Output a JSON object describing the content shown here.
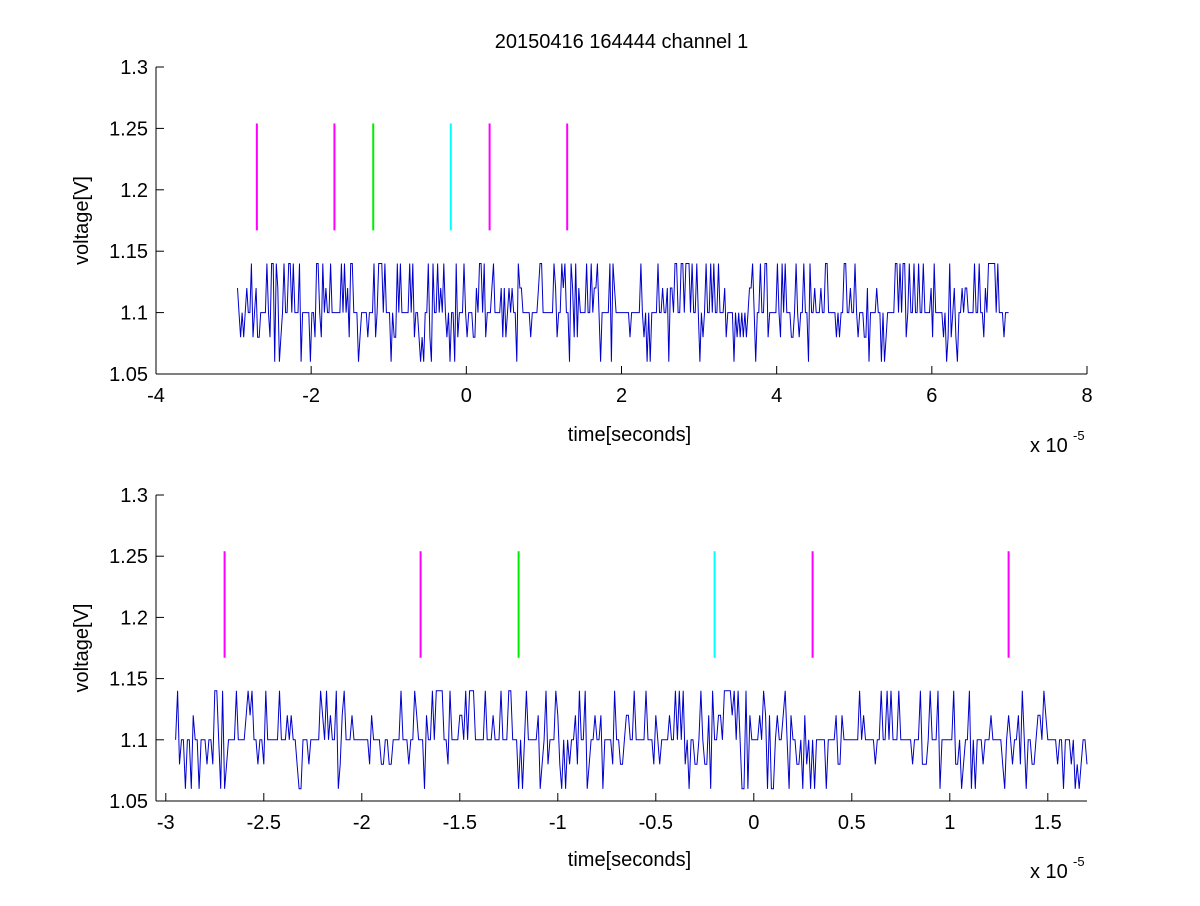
{
  "chart_data": [
    {
      "type": "line",
      "title": "20150416 164444 channel 1",
      "xlabel": "time[seconds]",
      "ylabel": "voltage[V]",
      "x_exponent_label": "x 10",
      "x_exponent_power": "-5",
      "xlim": [
        -4,
        8
      ],
      "ylim": [
        1.05,
        1.3
      ],
      "xticks": [
        "-4",
        "-2",
        "0",
        "2",
        "4",
        "6",
        "8"
      ],
      "xtick_values": [
        -4,
        -2,
        0,
        2,
        4,
        6,
        8
      ],
      "yticks": [
        "1.05",
        "1.1",
        "1.15",
        "1.2",
        "1.25",
        "1.3"
      ],
      "ytick_values": [
        1.05,
        1.1,
        1.15,
        1.2,
        1.25,
        1.3
      ],
      "grid": false,
      "signal": {
        "color": "#0000cc",
        "x_start": -2.95,
        "x_end": 7.0,
        "dt": 0.02,
        "levels": [
          1.06,
          1.08,
          1.1,
          1.12,
          1.14
        ],
        "baseline": 1.1
      },
      "markers": [
        {
          "x": -2.7,
          "y_from": 1.167,
          "y_to": 1.254,
          "color": "#ff00ff"
        },
        {
          "x": -1.7,
          "y_from": 1.167,
          "y_to": 1.254,
          "color": "#ff00ff"
        },
        {
          "x": -1.2,
          "y_from": 1.167,
          "y_to": 1.254,
          "color": "#00ee00"
        },
        {
          "x": -0.2,
          "y_from": 1.167,
          "y_to": 1.254,
          "color": "#00ffff"
        },
        {
          "x": 0.3,
          "y_from": 1.167,
          "y_to": 1.254,
          "color": "#ff00ff"
        },
        {
          "x": 1.3,
          "y_from": 1.167,
          "y_to": 1.254,
          "color": "#ff00ff"
        }
      ]
    },
    {
      "type": "line",
      "title": "",
      "xlabel": "time[seconds]",
      "ylabel": "voltage[V]",
      "x_exponent_label": "x 10",
      "x_exponent_power": "-5",
      "xlim": [
        -3.05,
        1.7
      ],
      "ylim": [
        1.05,
        1.3
      ],
      "xticks": [
        "-3",
        "-2.5",
        "-2",
        "-1.5",
        "-1",
        "-0.5",
        "0",
        "0.5",
        "1",
        "1.5"
      ],
      "xtick_values": [
        -3,
        -2.5,
        -2,
        -1.5,
        -1,
        -0.5,
        0,
        0.5,
        1,
        1.5
      ],
      "yticks": [
        "1.05",
        "1.1",
        "1.15",
        "1.2",
        "1.25",
        "1.3"
      ],
      "ytick_values": [
        1.05,
        1.1,
        1.15,
        1.2,
        1.25,
        1.3
      ],
      "grid": false,
      "signal": {
        "color": "#0000cc",
        "x_start": -2.95,
        "x_end": 1.7,
        "dt": 0.01,
        "levels": [
          1.06,
          1.08,
          1.1,
          1.12,
          1.14
        ],
        "baseline": 1.1
      },
      "markers": [
        {
          "x": -2.7,
          "y_from": 1.167,
          "y_to": 1.254,
          "color": "#ff00ff"
        },
        {
          "x": -1.7,
          "y_from": 1.167,
          "y_to": 1.254,
          "color": "#ff00ff"
        },
        {
          "x": -1.2,
          "y_from": 1.167,
          "y_to": 1.254,
          "color": "#00ee00"
        },
        {
          "x": -0.2,
          "y_from": 1.167,
          "y_to": 1.254,
          "color": "#00ffff"
        },
        {
          "x": 0.3,
          "y_from": 1.167,
          "y_to": 1.254,
          "color": "#ff00ff"
        },
        {
          "x": 1.3,
          "y_from": 1.167,
          "y_to": 1.254,
          "color": "#ff00ff"
        }
      ]
    }
  ]
}
